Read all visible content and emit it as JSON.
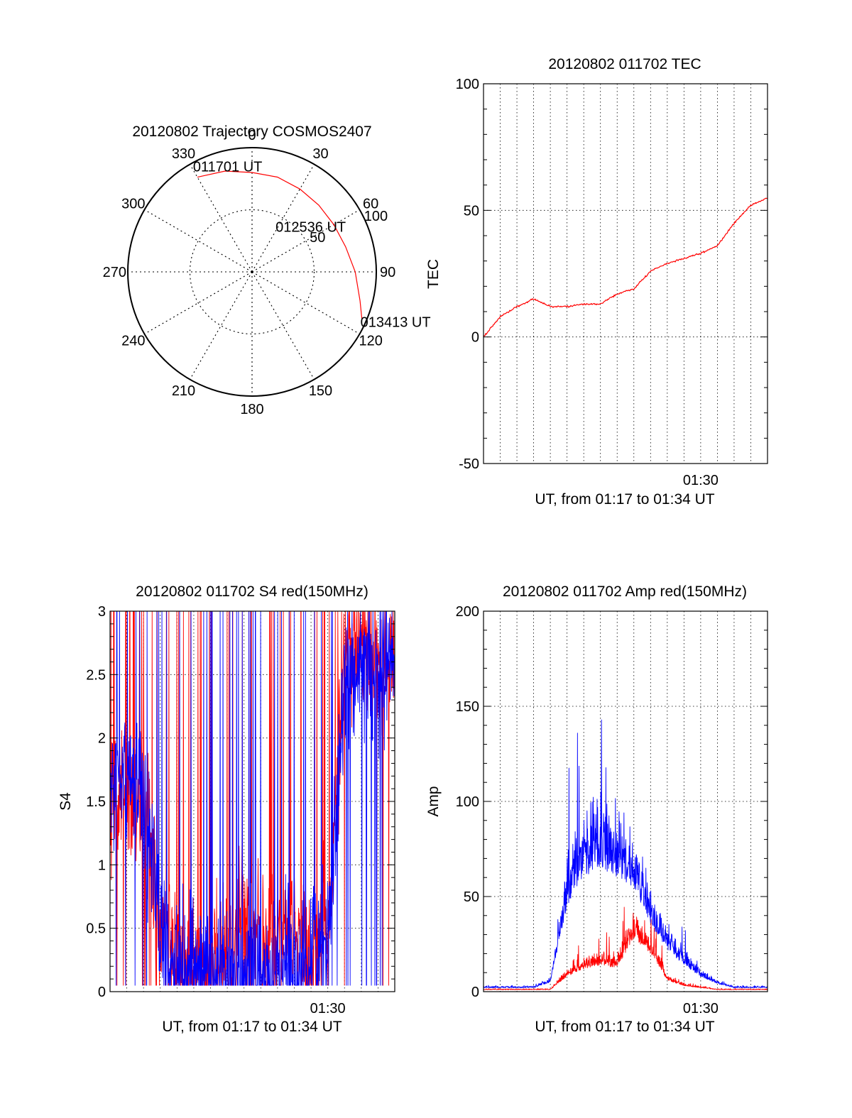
{
  "colors": {
    "red": "#ff0000",
    "blue": "#0000ff",
    "axis": "#000000"
  },
  "chart_data": [
    {
      "type": "polar",
      "title": "20120802 Trajectory COSMOS2407",
      "angle_ticks": [
        "0",
        "30",
        "60",
        "90",
        "120",
        "150",
        "180",
        "210",
        "240",
        "270",
        "300",
        "330"
      ],
      "radial_ticks": [
        "50",
        "100"
      ],
      "rlim": [
        0,
        100
      ],
      "trajectory": [
        [
          330,
          88
        ],
        [
          345,
          84
        ],
        [
          0,
          80
        ],
        [
          15,
          79
        ],
        [
          30,
          77
        ],
        [
          45,
          76
        ],
        [
          60,
          76
        ],
        [
          75,
          78
        ],
        [
          90,
          83
        ],
        [
          105,
          90
        ],
        [
          113,
          96
        ]
      ],
      "annotations": [
        {
          "text": "011701 UT",
          "az": 335,
          "el": 88
        },
        {
          "text": "012536 UT",
          "az": 60,
          "el": 76
        },
        {
          "text": "013413 UT",
          "az": 113,
          "el": 96
        }
      ]
    },
    {
      "type": "line",
      "title": "20120802 011702 TEC",
      "xlabel": "UT, from 01:17 to 01:34 UT",
      "ylabel": "TEC",
      "xlim": [
        "01:17",
        "01:34"
      ],
      "ylim": [
        -50,
        100
      ],
      "yticks": [
        "-50",
        "0",
        "50",
        "100"
      ],
      "xticks": [
        "01:30"
      ],
      "series": [
        {
          "color": "red",
          "x": [
            "01:17",
            "01:18",
            "01:19",
            "01:20",
            "01:21",
            "01:22",
            "01:23",
            "01:24",
            "01:25",
            "01:26",
            "01:27",
            "01:28",
            "01:29",
            "01:30",
            "01:31",
            "01:32",
            "01:33",
            "01:34"
          ],
          "values": [
            0,
            8,
            12,
            15,
            12,
            12,
            13,
            13,
            17,
            19,
            26,
            29,
            31,
            33,
            36,
            45,
            52,
            55
          ]
        }
      ]
    },
    {
      "type": "line",
      "title": "20120802 011702 S4 red(150MHz)",
      "xlabel": "UT, from 01:17 to 01:34 UT",
      "ylabel": "S4",
      "xlim": [
        "01:17",
        "01:34"
      ],
      "ylim": [
        0,
        3
      ],
      "yticks": [
        "0",
        "0.5",
        "1",
        "1.5",
        "2",
        "2.5",
        "3"
      ],
      "xticks": [
        "01:30"
      ],
      "series": [
        {
          "color": "red",
          "x": [
            "01:17",
            "01:18",
            "01:19",
            "01:20",
            "01:21",
            "01:22",
            "01:23",
            "01:24",
            "01:25",
            "01:26",
            "01:27",
            "01:28",
            "01:29",
            "01:30",
            "01:31",
            "01:32",
            "01:33",
            "01:34"
          ],
          "values": [
            1.5,
            1.6,
            1.5,
            0.6,
            0.25,
            0.2,
            0.18,
            0.35,
            0.6,
            0.45,
            0.5,
            0.55,
            0.35,
            0.5,
            2.6,
            2.7,
            2.6,
            2.5
          ]
        },
        {
          "color": "blue",
          "x": [
            "01:17",
            "01:18",
            "01:19",
            "01:20",
            "01:21",
            "01:22",
            "01:23",
            "01:24",
            "01:25",
            "01:26",
            "01:27",
            "01:28",
            "01:29",
            "01:30",
            "01:31",
            "01:32",
            "01:33",
            "01:34"
          ],
          "values": [
            1.6,
            1.7,
            1.6,
            0.5,
            0.2,
            0.17,
            0.15,
            0.18,
            0.17,
            0.15,
            0.2,
            0.2,
            0.3,
            0.4,
            2.4,
            2.5,
            2.6,
            2.5
          ]
        }
      ]
    },
    {
      "type": "line",
      "title": "20120802 011702 Amp red(150MHz)",
      "xlabel": "UT, from 01:17 to 01:34 UT",
      "ylabel": "Amp",
      "xlim": [
        "01:17",
        "01:34"
      ],
      "ylim": [
        0,
        200
      ],
      "yticks": [
        "0",
        "50",
        "100",
        "150",
        "200"
      ],
      "xticks": [
        "01:30"
      ],
      "series": [
        {
          "color": "red",
          "x": [
            "01:17",
            "01:18",
            "01:19",
            "01:20",
            "01:21",
            "01:22",
            "01:23",
            "01:24",
            "01:25",
            "01:26",
            "01:27",
            "01:28",
            "01:29",
            "01:30",
            "01:31",
            "01:32",
            "01:33",
            "01:34"
          ],
          "values": [
            1,
            1,
            1,
            1,
            1,
            8,
            12,
            14,
            12,
            28,
            20,
            6,
            3,
            2,
            1,
            1,
            1,
            1
          ]
        },
        {
          "color": "blue",
          "x": [
            "01:17",
            "01:18",
            "01:19",
            "01:20",
            "01:21",
            "01:22",
            "01:23",
            "01:24",
            "01:25",
            "01:26",
            "01:27",
            "01:28",
            "01:29",
            "01:30",
            "01:31",
            "01:32",
            "01:33",
            "01:34"
          ],
          "values": [
            2,
            2,
            2,
            2,
            5,
            45,
            60,
            65,
            60,
            55,
            35,
            22,
            14,
            8,
            4,
            2,
            2,
            2
          ]
        }
      ]
    }
  ]
}
